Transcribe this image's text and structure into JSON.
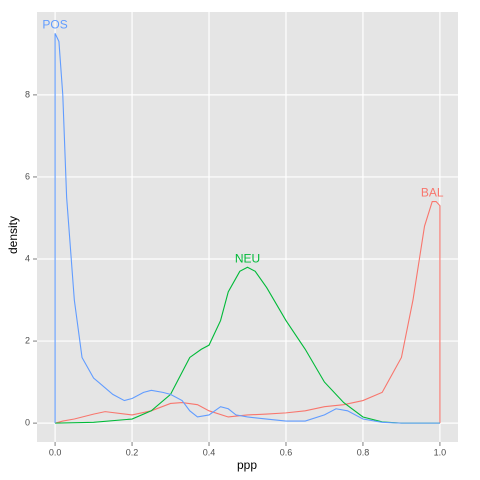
{
  "chart_data": {
    "type": "line",
    "x_label": "ppp",
    "y_label": "density",
    "xlim": [
      -0.047,
      1.047
    ],
    "ylim": [
      -0.46,
      10.02
    ],
    "xticks": [
      {
        "value": 0,
        "label": "0.0"
      },
      0.2,
      0.4,
      0.6,
      0.8,
      {
        "value": 1,
        "label": "1.0"
      }
    ],
    "yticks": [
      0,
      2,
      4,
      6,
      8
    ],
    "grid": true,
    "series": [
      {
        "name": "BAL",
        "color": "#F8766D",
        "x": [
          0,
          0.02,
          0.05,
          0.1,
          0.13,
          0.2,
          0.25,
          0.3,
          0.33,
          0.37,
          0.4,
          0.45,
          0.5,
          0.55,
          0.6,
          0.65,
          0.7,
          0.75,
          0.8,
          0.85,
          0.9,
          0.93,
          0.96,
          0.98,
          0.99,
          1,
          1
        ],
        "values": [
          0,
          0.05,
          0.1,
          0.22,
          0.28,
          0.2,
          0.3,
          0.48,
          0.5,
          0.45,
          0.3,
          0.15,
          0.2,
          0.22,
          0.25,
          0.3,
          0.4,
          0.45,
          0.55,
          0.75,
          1.6,
          3,
          4.8,
          5.4,
          5.4,
          5.3,
          0
        ]
      },
      {
        "name": "NEU",
        "color": "#00BA38",
        "x": [
          0,
          0.1,
          0.2,
          0.25,
          0.3,
          0.35,
          0.38,
          0.4,
          0.43,
          0.45,
          0.48,
          0.5,
          0.52,
          0.55,
          0.6,
          0.65,
          0.7,
          0.75,
          0.8,
          0.85,
          0.9,
          1
        ],
        "values": [
          0,
          0.02,
          0.1,
          0.3,
          0.7,
          1.6,
          1.8,
          1.9,
          2.5,
          3.2,
          3.7,
          3.8,
          3.7,
          3.3,
          2.5,
          1.8,
          1,
          0.5,
          0.15,
          0.03,
          0,
          0
        ]
      },
      {
        "name": "POS",
        "color": "#619CFF",
        "x": [
          0,
          0,
          0.01,
          0.02,
          0.03,
          0.05,
          0.07,
          0.1,
          0.15,
          0.18,
          0.2,
          0.23,
          0.25,
          0.28,
          0.3,
          0.33,
          0.35,
          0.37,
          0.4,
          0.43,
          0.45,
          0.47,
          0.5,
          0.55,
          0.6,
          0.65,
          0.7,
          0.73,
          0.76,
          0.8,
          0.85,
          0.9,
          1
        ],
        "values": [
          0,
          9.5,
          9.3,
          8,
          5.5,
          3,
          1.6,
          1.1,
          0.7,
          0.55,
          0.6,
          0.75,
          0.8,
          0.75,
          0.7,
          0.55,
          0.3,
          0.15,
          0.2,
          0.4,
          0.35,
          0.2,
          0.15,
          0.1,
          0.05,
          0.05,
          0.2,
          0.35,
          0.3,
          0.1,
          0.02,
          0,
          0
        ]
      }
    ]
  }
}
